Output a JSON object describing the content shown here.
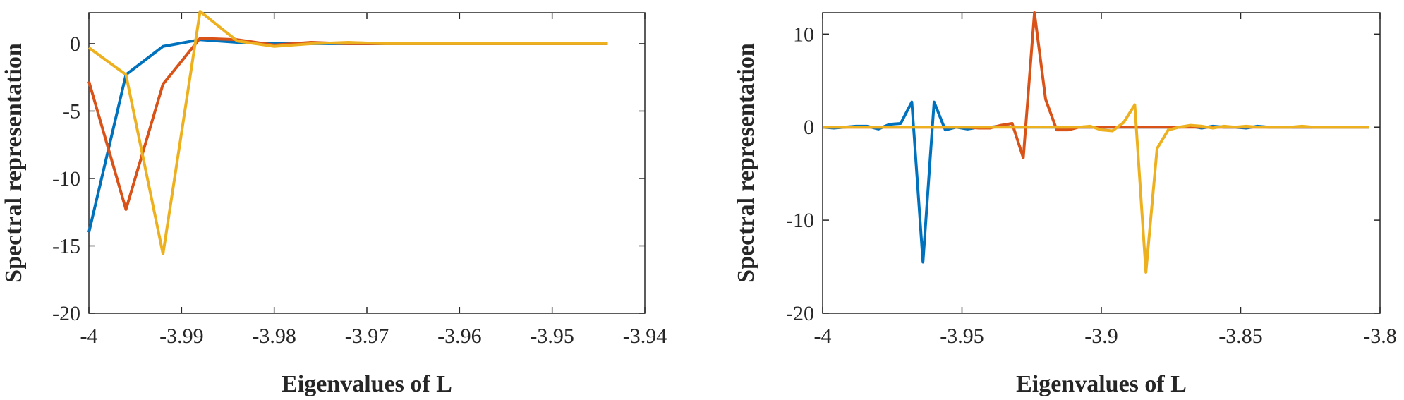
{
  "chart_data": [
    {
      "type": "line",
      "xlabel": "Eigenvalues of L",
      "ylabel": "Spectral representation",
      "xlim": [
        -4,
        -3.94
      ],
      "xticks": [
        -4,
        -3.99,
        -3.98,
        -3.97,
        -3.96,
        -3.95,
        -3.94
      ],
      "ylim": [
        -20,
        2.3
      ],
      "yticks": [
        -20,
        -15,
        -10,
        -5,
        0
      ],
      "x": [
        -4,
        -3.996,
        -3.992,
        -3.988,
        -3.984,
        -3.98,
        -3.976,
        -3.972,
        -3.968,
        -3.964,
        -3.96,
        -3.956,
        -3.952,
        -3.948,
        -3.944
      ],
      "series": [
        {
          "color": "#0072bd",
          "values": [
            -14,
            -2.3,
            -0.2,
            0.3,
            0.1,
            0,
            0,
            0,
            0,
            0,
            0,
            0,
            0,
            0,
            0
          ]
        },
        {
          "color": "#d95319",
          "values": [
            -2.8,
            -12.3,
            -3,
            0.4,
            0.3,
            -0.1,
            0.1,
            0,
            0,
            0,
            0,
            0,
            0,
            0,
            0
          ]
        },
        {
          "color": "#edb120",
          "values": [
            -0.3,
            -2.3,
            -15.6,
            2.4,
            0.2,
            -0.2,
            0,
            0.1,
            0,
            0,
            0,
            0,
            0,
            0,
            0
          ]
        }
      ]
    },
    {
      "type": "line",
      "xlabel": "Eigenvalues of L",
      "ylabel": "Spectral representation",
      "xlim": [
        -4,
        -3.8
      ],
      "xticks": [
        -4,
        -3.95,
        -3.9,
        -3.85,
        -3.8
      ],
      "ylim": [
        -20,
        12.3
      ],
      "yticks": [
        -20,
        -10,
        0,
        10
      ],
      "x": [
        -4,
        -3.996,
        -3.992,
        -3.988,
        -3.984,
        -3.98,
        -3.976,
        -3.972,
        -3.968,
        -3.964,
        -3.96,
        -3.956,
        -3.952,
        -3.948,
        -3.944,
        -3.94,
        -3.936,
        -3.932,
        -3.928,
        -3.924,
        -3.92,
        -3.916,
        -3.912,
        -3.908,
        -3.904,
        -3.9,
        -3.896,
        -3.892,
        -3.888,
        -3.884,
        -3.88,
        -3.876,
        -3.872,
        -3.868,
        -3.864,
        -3.86,
        -3.856,
        -3.852,
        -3.848,
        -3.844,
        -3.84,
        -3.836,
        -3.832,
        -3.828,
        -3.824,
        -3.82,
        -3.816,
        -3.812,
        -3.808,
        -3.804
      ],
      "series": [
        {
          "color": "#0072bd",
          "values": [
            0,
            -0.1,
            0,
            0.1,
            0.1,
            -0.2,
            0.3,
            0.4,
            2.7,
            -14.5,
            2.7,
            -0.3,
            0,
            -0.2,
            0,
            0,
            0.1,
            0,
            0,
            0,
            0,
            0,
            0,
            0,
            0,
            0,
            0,
            0,
            0,
            0,
            0,
            0,
            0,
            0.1,
            -0.1,
            0.1,
            0,
            0,
            -0.1,
            0.1,
            0,
            0,
            0,
            0,
            0,
            0,
            0,
            0,
            0,
            0
          ]
        },
        {
          "color": "#d95319",
          "values": [
            0,
            0,
            0,
            0,
            0,
            0,
            0,
            0,
            0,
            0,
            0,
            0,
            0,
            0,
            -0.1,
            -0.1,
            0.2,
            0.4,
            -3.3,
            12.3,
            3,
            -0.3,
            -0.3,
            0,
            0,
            0,
            0,
            0,
            0,
            0,
            0,
            0,
            0,
            0,
            0,
            0,
            0,
            0,
            0,
            0,
            0,
            0,
            0,
            0,
            0,
            0,
            0,
            0,
            0,
            0
          ]
        },
        {
          "color": "#edb120",
          "values": [
            0,
            0,
            0,
            0,
            0,
            0,
            0,
            0,
            0,
            0,
            0,
            0,
            0,
            0,
            0,
            0,
            0,
            0,
            0,
            0,
            0,
            0,
            0,
            0,
            0.1,
            -0.3,
            -0.4,
            0.5,
            2.4,
            -15.6,
            -2.3,
            -0.3,
            0,
            0.2,
            0.1,
            -0.1,
            0.1,
            0,
            0.1,
            0,
            0,
            0,
            0,
            0.1,
            0,
            0,
            0,
            0,
            0,
            0
          ]
        }
      ]
    }
  ]
}
